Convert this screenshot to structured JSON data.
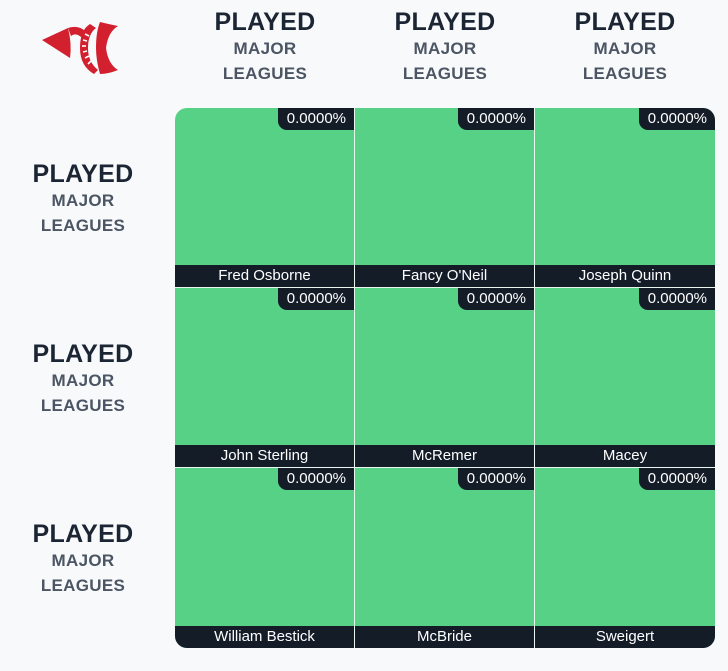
{
  "colors": {
    "cell_correct": "#57d185",
    "label_bg": "#141c28",
    "logo_red": "#d3202f"
  },
  "logo": {
    "icon": "baseball-logo-icon"
  },
  "columns": [
    {
      "main": "PLAYED",
      "line1": "MAJOR",
      "line2": "LEAGUES"
    },
    {
      "main": "PLAYED",
      "line1": "MAJOR",
      "line2": "LEAGUES"
    },
    {
      "main": "PLAYED",
      "line1": "MAJOR",
      "line2": "LEAGUES"
    }
  ],
  "rows": [
    {
      "main": "PLAYED",
      "line1": "MAJOR",
      "line2": "LEAGUES"
    },
    {
      "main": "PLAYED",
      "line1": "MAJOR",
      "line2": "LEAGUES"
    },
    {
      "main": "PLAYED",
      "line1": "MAJOR",
      "line2": "LEAGUES"
    }
  ],
  "cells": [
    [
      {
        "percent": "0.0000%",
        "player": "Fred Osborne"
      },
      {
        "percent": "0.0000%",
        "player": "Fancy O'Neil"
      },
      {
        "percent": "0.0000%",
        "player": "Joseph Quinn"
      }
    ],
    [
      {
        "percent": "0.0000%",
        "player": "John Sterling"
      },
      {
        "percent": "0.0000%",
        "player": "McRemer"
      },
      {
        "percent": "0.0000%",
        "player": "Macey"
      }
    ],
    [
      {
        "percent": "0.0000%",
        "player": "William Bestick"
      },
      {
        "percent": "0.0000%",
        "player": "McBride"
      },
      {
        "percent": "0.0000%",
        "player": "Sweigert"
      }
    ]
  ]
}
